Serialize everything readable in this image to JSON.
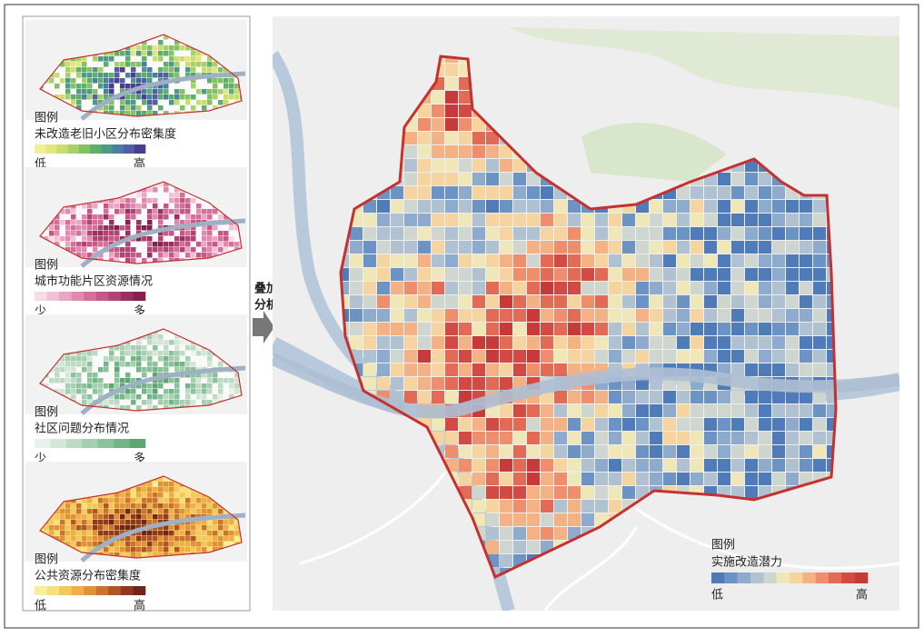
{
  "panels": [
    {
      "legend_title": "图例",
      "legend_label": "未改造老旧小区分布密集度",
      "low": "低",
      "high": "高",
      "colors": [
        "#f2ef9a",
        "#e3e77f",
        "#c9de6d",
        "#a8d066",
        "#84c164",
        "#5fae6a",
        "#4f9a86",
        "#4b7fa2",
        "#4f5ea6",
        "#4a3f8f"
      ]
    },
    {
      "legend_title": "图例",
      "legend_label": "城市功能片区资源情况",
      "low": "少",
      "high": "多",
      "colors": [
        "#f7dbe7",
        "#f1c2d6",
        "#e9a6c2",
        "#df8aae",
        "#d36f9a",
        "#c55886",
        "#b24473",
        "#9b2f60",
        "#85214f"
      ]
    },
    {
      "legend_title": "图例",
      "legend_label": "社区问题分布情况",
      "low": "少",
      "high": "多",
      "colors": [
        "#e8f1ea",
        "#d3e6d7",
        "#bddbc4",
        "#a5cfb0",
        "#8cc29b",
        "#74b487",
        "#5ea574"
      ]
    },
    {
      "legend_title": "图例",
      "legend_label": "公共资源分布密集度",
      "low": "低",
      "high": "高",
      "colors": [
        "#f8ef9c",
        "#f6df7c",
        "#f3c95e",
        "#eeaf48",
        "#e2913b",
        "#cc7231",
        "#b05528",
        "#8f3a20",
        "#6e261a"
      ]
    }
  ],
  "overlay_label": [
    "叠加",
    "分析"
  ],
  "main_legend": {
    "title": "图例",
    "label": "实施改造潜力",
    "low": "低",
    "high": "高",
    "colors": [
      "#4f7cb9",
      "#6b93c4",
      "#8eaacc",
      "#b0c1d2",
      "#cfd6d0",
      "#efe7b8",
      "#f6d4a0",
      "#f4b184",
      "#ee8e6c",
      "#e36a55",
      "#d24a43",
      "#c73a3a"
    ]
  }
}
